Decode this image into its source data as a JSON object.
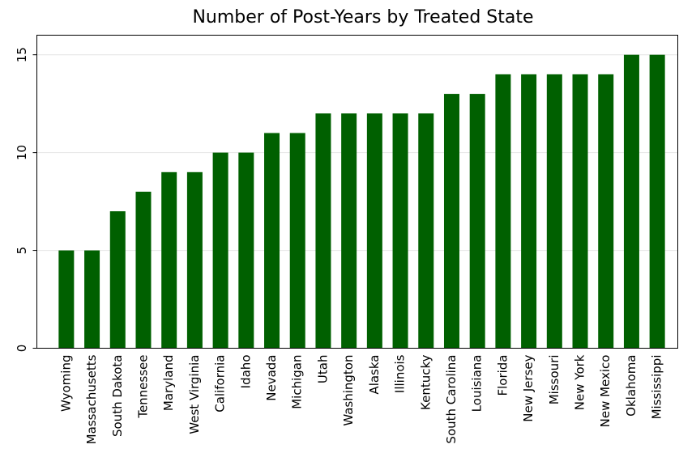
{
  "chart_data": {
    "type": "bar",
    "title": "Number of Post-Years by Treated State",
    "categories": [
      "Wyoming",
      "Massachusetts",
      "South Dakota",
      "Tennessee",
      "Maryland",
      "West Virginia",
      "California",
      "Idaho",
      "Nevada",
      "Michigan",
      "Utah",
      "Washington",
      "Alaska",
      "Illinois",
      "Kentucky",
      "South Carolina",
      "Louisiana",
      "Florida",
      "New Jersey",
      "Missouri",
      "New York",
      "New Mexico",
      "Oklahoma",
      "Mississippi"
    ],
    "values": [
      5,
      5,
      7,
      8,
      9,
      9,
      10,
      10,
      11,
      11,
      12,
      12,
      12,
      12,
      12,
      13,
      13,
      14,
      14,
      14,
      14,
      14,
      15,
      15
    ],
    "color": "#006000",
    "ylim": [
      0,
      16
    ],
    "yticks": [
      0,
      5,
      10,
      15
    ],
    "grid": true
  }
}
